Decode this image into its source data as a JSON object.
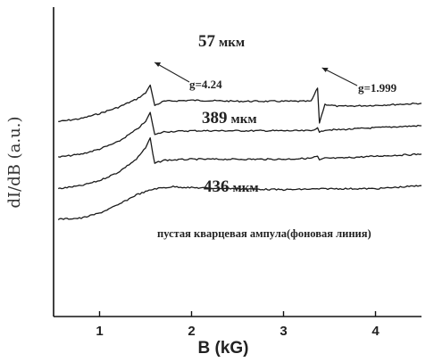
{
  "chart_data": {
    "type": "line",
    "title": "",
    "xlabel": "B (kG)",
    "ylabel": "dI/dB (a.u.)",
    "xlim": [
      0.5,
      4.5
    ],
    "xticks": [
      "1",
      "2",
      "3",
      "4"
    ],
    "xtick_values": [
      1,
      2,
      3,
      4
    ],
    "grid": false,
    "series": [
      {
        "name": "57 мкм",
        "label_value": "57",
        "label_unit": "мкм",
        "x": [
          0.55,
          0.8,
          1.0,
          1.2,
          1.4,
          1.5,
          1.55,
          1.58,
          1.6,
          1.7,
          2.0,
          2.5,
          3.0,
          3.3,
          3.37,
          3.39,
          3.45,
          3.6,
          4.0,
          4.5
        ],
        "offset_y": [
          4.0,
          4.3,
          4.8,
          5.4,
          6.2,
          6.8,
          7.6,
          6.4,
          5.6,
          6.0,
          6.1,
          6.0,
          6.0,
          6.0,
          7.3,
          3.9,
          5.7,
          5.5,
          5.6,
          5.8
        ]
      },
      {
        "name": "389 мкм",
        "label_value": "389",
        "label_unit": "мкм",
        "x": [
          0.55,
          0.8,
          1.0,
          1.2,
          1.4,
          1.5,
          1.55,
          1.58,
          1.6,
          1.7,
          2.0,
          2.5,
          3.0,
          3.3,
          3.37,
          3.39,
          3.45,
          3.6,
          4.0,
          4.5
        ],
        "offset_y": [
          0.5,
          0.8,
          1.3,
          2.0,
          3.2,
          4.0,
          4.9,
          3.6,
          2.7,
          3.0,
          3.1,
          3.1,
          3.1,
          3.1,
          3.4,
          2.9,
          3.2,
          3.2,
          3.4,
          3.6
        ]
      },
      {
        "name": "436 мкм",
        "label_value": "436",
        "label_unit": "мкм",
        "x": [
          0.55,
          0.8,
          1.0,
          1.2,
          1.4,
          1.5,
          1.55,
          1.58,
          1.6,
          1.7,
          2.0,
          2.5,
          3.0,
          3.3,
          3.37,
          3.39,
          3.45,
          3.6,
          4.0,
          4.5
        ],
        "offset_y": [
          -2.6,
          -2.3,
          -1.8,
          -1.0,
          0.3,
          1.4,
          2.4,
          0.8,
          -0.1,
          0.2,
          0.3,
          0.3,
          0.3,
          0.4,
          0.6,
          0.2,
          0.4,
          0.4,
          0.6,
          0.8
        ]
      },
      {
        "name": "пустая кварцевая ампула(фоновая линия)",
        "x": [
          0.55,
          0.8,
          1.0,
          1.2,
          1.4,
          1.6,
          1.8,
          2.0,
          2.5,
          3.0,
          3.5,
          4.0,
          4.5
        ],
        "offset_y": [
          -5.6,
          -5.5,
          -5.0,
          -4.2,
          -3.2,
          -2.6,
          -2.4,
          -2.5,
          -2.6,
          -2.7,
          -2.6,
          -2.6,
          -2.3
        ]
      }
    ],
    "annotations": [
      {
        "text": "g=4.24",
        "x": 1.56
      },
      {
        "text": "g=1.999",
        "x": 3.38
      }
    ]
  }
}
